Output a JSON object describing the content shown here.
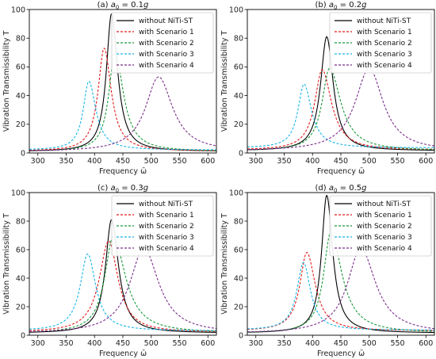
{
  "chart_data": [
    {
      "type": "line",
      "title": "(a) a0 = 0.1g",
      "title_prefix": "(a)",
      "title_var": "a",
      "title_sub": "0",
      "title_rest": " = 0.1",
      "title_g": "g",
      "xlabel": "Frequency ω̄",
      "ylabel": "Vibration Transmissibility  T",
      "xlim": [
        285,
        615
      ],
      "ylim": [
        0,
        100
      ],
      "xticks": [
        "300",
        "350",
        "400",
        "450",
        "500",
        "550",
        "600"
      ],
      "yticks": [
        "0",
        "20",
        "40",
        "60",
        "80",
        "100"
      ],
      "legend_position": "top-right",
      "series": [
        {
          "name": "without NiTi-ST",
          "color": "#000000",
          "dashed": false,
          "peak_x": 430,
          "peak_y": 97,
          "base": 1.0,
          "left_w": 11,
          "right_w": 13
        },
        {
          "name": "with Scenario 1",
          "color": "#e41a1c",
          "dashed": true,
          "peak_x": 417,
          "peak_y": 73,
          "base": 1.2,
          "left_w": 13,
          "right_w": 15
        },
        {
          "name": "with Scenario 2",
          "color": "#1a9a3a",
          "dashed": true,
          "peak_x": 436,
          "peak_y": 70,
          "base": 1.0,
          "left_w": 13,
          "right_w": 18
        },
        {
          "name": "with Scenario 3",
          "color": "#17b5e8",
          "dashed": true,
          "peak_x": 390,
          "peak_y": 50,
          "base": 2.0,
          "left_w": 12,
          "right_w": 15
        },
        {
          "name": "with Scenario 4",
          "color": "#7b2d8b",
          "dashed": true,
          "peak_x": 513,
          "peak_y": 53,
          "base": 0.8,
          "left_w": 28,
          "right_w": 30
        }
      ]
    },
    {
      "type": "line",
      "title": "(b) a0 = 0.2g",
      "title_prefix": "(b)",
      "title_var": "a",
      "title_sub": "0",
      "title_rest": " = 0.2",
      "title_g": "g",
      "xlabel": "Frequency ω̄",
      "ylabel": "Vibration Transmissibility  T",
      "xlim": [
        285,
        615
      ],
      "ylim": [
        0,
        100
      ],
      "xticks": [
        "300",
        "350",
        "400",
        "450",
        "500",
        "550",
        "600"
      ],
      "yticks": [
        "0",
        "20",
        "40",
        "60",
        "80",
        "100"
      ],
      "legend_position": "top-right",
      "series": [
        {
          "name": "without NiTi-ST",
          "color": "#000000",
          "dashed": false,
          "peak_x": 425,
          "peak_y": 81,
          "base": 1.5,
          "left_w": 13,
          "right_w": 14
        },
        {
          "name": "with Scenario 1",
          "color": "#e41a1c",
          "dashed": true,
          "peak_x": 417,
          "peak_y": 58,
          "base": 2.0,
          "left_w": 16,
          "right_w": 20
        },
        {
          "name": "with Scenario 2",
          "color": "#1a9a3a",
          "dashed": true,
          "peak_x": 430,
          "peak_y": 59,
          "base": 1.5,
          "left_w": 16,
          "right_w": 24
        },
        {
          "name": "with Scenario 3",
          "color": "#17b5e8",
          "dashed": true,
          "peak_x": 385,
          "peak_y": 48,
          "base": 3.5,
          "left_w": 13,
          "right_w": 16
        },
        {
          "name": "with Scenario 4",
          "color": "#7b2d8b",
          "dashed": true,
          "peak_x": 500,
          "peak_y": 59,
          "base": 1.2,
          "left_w": 30,
          "right_w": 30
        }
      ]
    },
    {
      "type": "line",
      "title": "(c) a0 = 0.3g",
      "title_prefix": "(c)",
      "title_var": "a",
      "title_sub": "0",
      "title_rest": " = 0.3",
      "title_g": "g",
      "xlabel": "Frequency ω̄",
      "ylabel": "Vibration Transmissibility  T",
      "xlim": [
        285,
        615
      ],
      "ylim": [
        0,
        100
      ],
      "xticks": [
        "300",
        "350",
        "400",
        "450",
        "500",
        "550",
        "600"
      ],
      "yticks": [
        "0",
        "20",
        "40",
        "60",
        "80",
        "100"
      ],
      "legend_position": "top-right",
      "series": [
        {
          "name": "without NiTi-ST",
          "color": "#000000",
          "dashed": false,
          "peak_x": 430,
          "peak_y": 81,
          "base": 1.5,
          "left_w": 13,
          "right_w": 15
        },
        {
          "name": "with Scenario 1",
          "color": "#e41a1c",
          "dashed": true,
          "peak_x": 425,
          "peak_y": 66,
          "base": 2.0,
          "left_w": 20,
          "right_w": 20
        },
        {
          "name": "with Scenario 2",
          "color": "#1a9a3a",
          "dashed": true,
          "peak_x": 433,
          "peak_y": 69,
          "base": 1.5,
          "left_w": 18,
          "right_w": 26
        },
        {
          "name": "with Scenario 3",
          "color": "#17b5e8",
          "dashed": true,
          "peak_x": 388,
          "peak_y": 57,
          "base": 3.0,
          "left_w": 16,
          "right_w": 17
        },
        {
          "name": "with Scenario 4",
          "color": "#7b2d8b",
          "dashed": true,
          "peak_x": 487,
          "peak_y": 61,
          "base": 1.2,
          "left_w": 30,
          "right_w": 32
        }
      ]
    },
    {
      "type": "line",
      "title": "(d) a0 = 0.5g",
      "title_prefix": "(d)",
      "title_var": "a",
      "title_sub": "0",
      "title_rest": " = 0.5",
      "title_g": "g",
      "xlabel": "Frequency ω̄",
      "ylabel": "Vibration Transmissibility  T",
      "xlim": [
        285,
        615
      ],
      "ylim": [
        0,
        100
      ],
      "xticks": [
        "300",
        "350",
        "400",
        "450",
        "500",
        "550",
        "600"
      ],
      "yticks": [
        "0",
        "20",
        "40",
        "60",
        "80",
        "100"
      ],
      "legend_position": "top-right",
      "series": [
        {
          "name": "without NiTi-ST",
          "color": "#000000",
          "dashed": false,
          "peak_x": 425,
          "peak_y": 98,
          "base": 1.5,
          "left_w": 11,
          "right_w": 13
        },
        {
          "name": "with Scenario 1",
          "color": "#e41a1c",
          "dashed": true,
          "peak_x": 390,
          "peak_y": 58,
          "base": 3.0,
          "left_w": 15,
          "right_w": 18
        },
        {
          "name": "with Scenario 2",
          "color": "#1a9a3a",
          "dashed": true,
          "peak_x": 432,
          "peak_y": 72,
          "base": 1.5,
          "left_w": 15,
          "right_w": 24
        },
        {
          "name": "with Scenario 3",
          "color": "#17b5e8",
          "dashed": true,
          "peak_x": 384,
          "peak_y": 51,
          "base": 3.5,
          "left_w": 14,
          "right_w": 15
        },
        {
          "name": "with Scenario 4",
          "color": "#7b2d8b",
          "dashed": true,
          "peak_x": 485,
          "peak_y": 61,
          "base": 1.2,
          "left_w": 28,
          "right_w": 32
        }
      ]
    }
  ]
}
